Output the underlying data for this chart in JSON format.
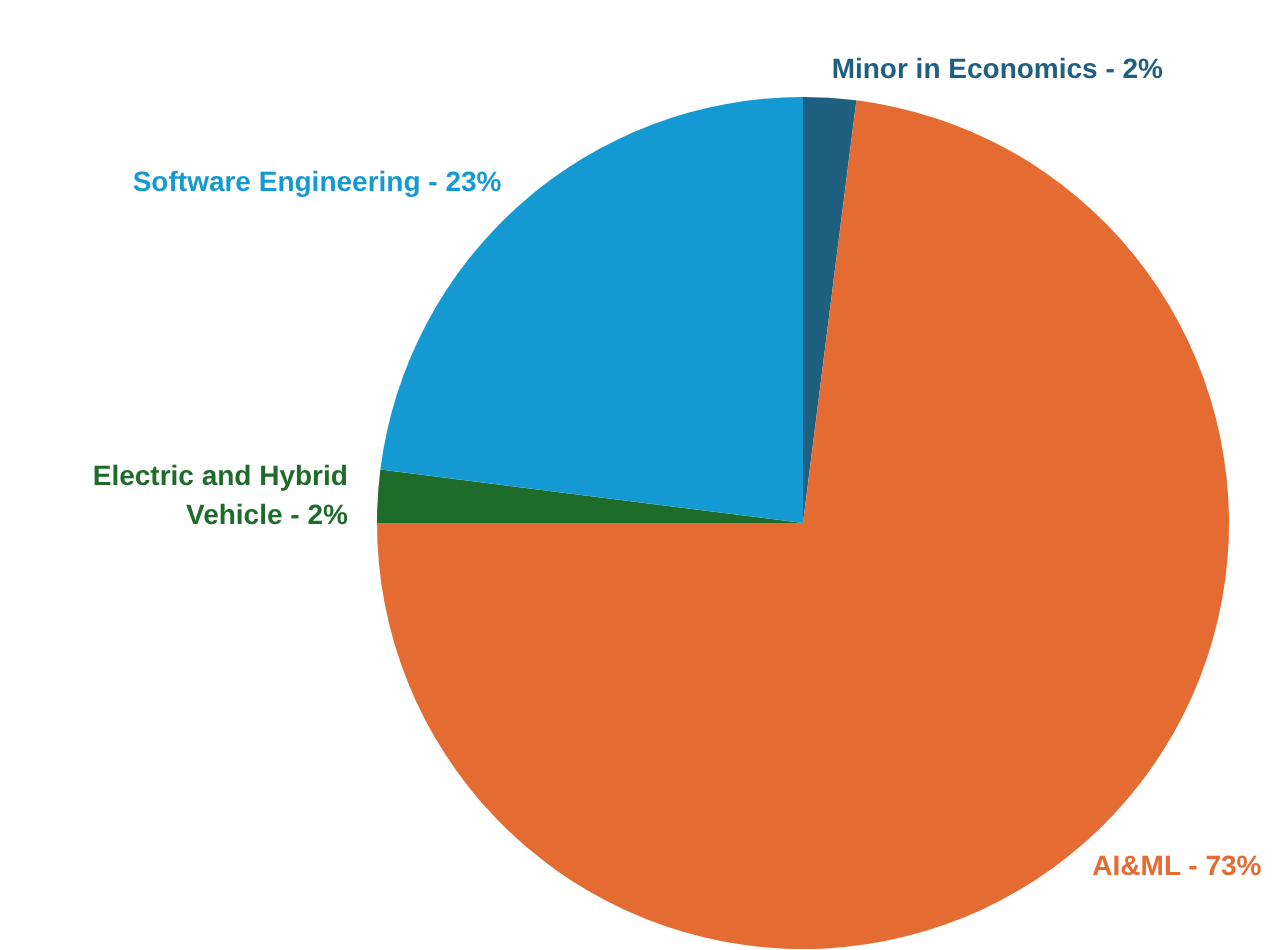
{
  "chart_data": {
    "type": "pie",
    "categories": [
      "Minor in Economics - 2%",
      "AI&ML - 73%",
      "Electric and Hybrid Vehicle - 2%",
      "Software Engineering - 23%"
    ],
    "values": [
      2,
      73,
      2,
      23
    ],
    "colors": [
      "#1f5f7f",
      "#e46c32",
      "#1e6b2a",
      "#1599d3"
    ]
  }
}
